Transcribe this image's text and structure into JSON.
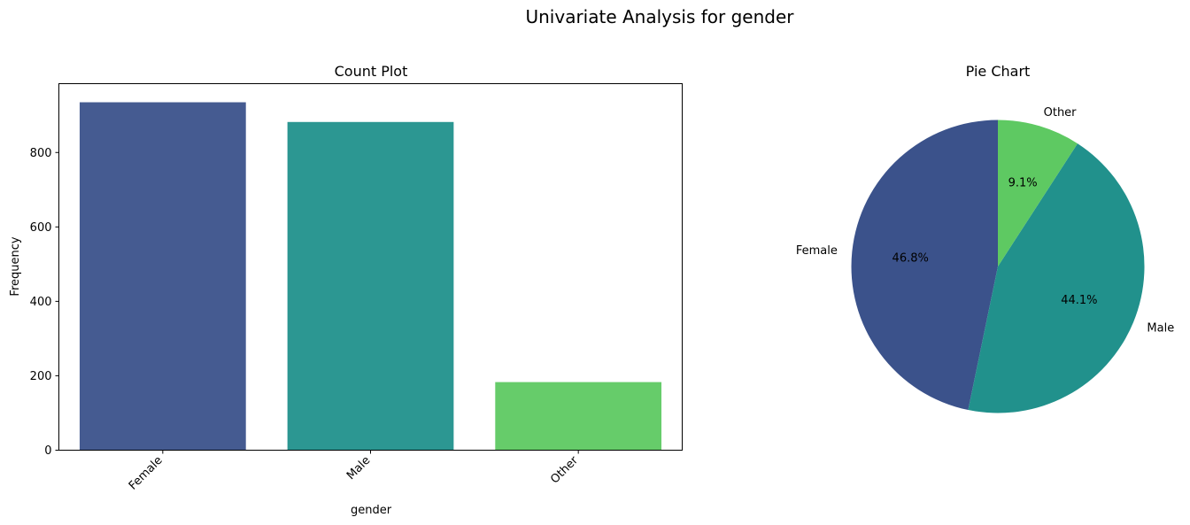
{
  "figure": {
    "title": "Univariate Analysis for gender"
  },
  "chart_data": [
    {
      "type": "bar",
      "title": "Count Plot",
      "xlabel": "gender",
      "ylabel": "Frequency",
      "categories": [
        "Female",
        "Male",
        "Other"
      ],
      "values": [
        935,
        882,
        183
      ],
      "ylim": [
        0,
        985
      ],
      "yticks": [
        0,
        200,
        400,
        600,
        800
      ],
      "colors": [
        "#3b528b",
        "#21918c",
        "#5ec962"
      ],
      "bar_alpha": 0.95,
      "xtick_rotation": 45,
      "grid": false
    },
    {
      "type": "pie",
      "title": "Pie Chart",
      "labels": [
        "Female",
        "Male",
        "Other"
      ],
      "values": [
        935,
        882,
        183
      ],
      "percent_labels": [
        "46.8%",
        "44.1%",
        "9.1%"
      ],
      "colors": [
        "#3b528b",
        "#21918c",
        "#5ec962"
      ],
      "start_angle_deg": 90,
      "direction": "counterclockwise"
    }
  ]
}
